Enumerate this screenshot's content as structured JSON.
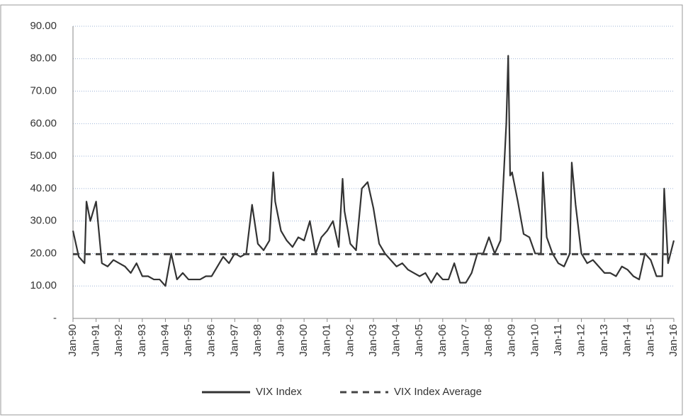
{
  "chart_data": {
    "type": "line",
    "xticks": [
      "Jan-90",
      "Jan-91",
      "Jan-92",
      "Jan-93",
      "Jan-94",
      "Jan-95",
      "Jan-96",
      "Jan-97",
      "Jan-98",
      "Jan-99",
      "Jan-00",
      "Jan-01",
      "Jan-02",
      "Jan-03",
      "Jan-04",
      "Jan-05",
      "Jan-06",
      "Jan-07",
      "Jan-08",
      "Jan-09",
      "Jan-10",
      "Jan-11",
      "Jan-12",
      "Jan-13",
      "Jan-14",
      "Jan-15",
      "Jan-16"
    ],
    "ylim": [
      0,
      90
    ],
    "yticks": [
      {
        "value": 0,
        "label": "-"
      },
      {
        "value": 10,
        "label": "10.00"
      },
      {
        "value": 20,
        "label": "20.00"
      },
      {
        "value": 30,
        "label": "30.00"
      },
      {
        "value": 40,
        "label": "40.00"
      },
      {
        "value": 50,
        "label": "50.00"
      },
      {
        "value": 60,
        "label": "60.00"
      },
      {
        "value": 70,
        "label": "70.00"
      },
      {
        "value": 80,
        "label": "80.00"
      },
      {
        "value": 90,
        "label": "90.00"
      }
    ],
    "grid": true,
    "series": [
      {
        "name": "VIX Index",
        "color": "#333333",
        "dash": false,
        "x": [
          "Jan-90",
          "Apr-90",
          "Jul-90",
          "Aug-90",
          "Oct-90",
          "Jan-91",
          "Apr-91",
          "Jul-91",
          "Oct-91",
          "Jan-92",
          "Apr-92",
          "Jul-92",
          "Oct-92",
          "Jan-93",
          "Apr-93",
          "Jul-93",
          "Oct-93",
          "Jan-94",
          "Apr-94",
          "Jul-94",
          "Oct-94",
          "Jan-95",
          "Apr-95",
          "Jul-95",
          "Oct-95",
          "Jan-96",
          "Apr-96",
          "Jul-96",
          "Oct-96",
          "Jan-97",
          "Apr-97",
          "Jul-97",
          "Oct-97",
          "Jan-98",
          "Apr-98",
          "Jul-98",
          "Sep-98",
          "Oct-98",
          "Jan-99",
          "Apr-99",
          "Jul-99",
          "Oct-99",
          "Jan-00",
          "Apr-00",
          "Jul-00",
          "Oct-00",
          "Jan-01",
          "Apr-01",
          "Jul-01",
          "Sep-01",
          "Oct-01",
          "Jan-02",
          "Apr-02",
          "Jul-02",
          "Oct-02",
          "Jan-03",
          "Apr-03",
          "Jul-03",
          "Oct-03",
          "Jan-04",
          "Apr-04",
          "Jul-04",
          "Oct-04",
          "Jan-05",
          "Apr-05",
          "Jul-05",
          "Oct-05",
          "Jan-06",
          "Apr-06",
          "Jul-06",
          "Oct-06",
          "Jan-07",
          "Apr-07",
          "Jul-07",
          "Oct-07",
          "Jan-08",
          "Apr-08",
          "Jul-08",
          "Oct-08",
          "Nov-08",
          "Dec-08",
          "Jan-09",
          "Apr-09",
          "Jul-09",
          "Oct-09",
          "Jan-10",
          "Apr-10",
          "May-10",
          "Jul-10",
          "Oct-10",
          "Jan-11",
          "Apr-11",
          "Jul-11",
          "Aug-11",
          "Oct-11",
          "Jan-12",
          "Apr-12",
          "Jul-12",
          "Oct-12",
          "Jan-13",
          "Apr-13",
          "Jul-13",
          "Oct-13",
          "Jan-14",
          "Apr-14",
          "Jul-14",
          "Oct-14",
          "Jan-15",
          "Apr-15",
          "Jul-15",
          "Aug-15",
          "Oct-15",
          "Jan-16"
        ],
        "values": [
          27,
          19,
          17,
          36,
          30,
          36,
          17,
          16,
          18,
          17,
          16,
          14,
          17,
          13,
          13,
          12,
          12,
          10,
          20,
          12,
          14,
          12,
          12,
          12,
          13,
          13,
          16,
          19,
          17,
          20,
          19,
          20,
          35,
          23,
          21,
          24,
          45,
          36,
          27,
          24,
          22,
          25,
          24,
          30,
          20,
          25,
          27,
          30,
          22,
          43,
          33,
          23,
          21,
          40,
          42,
          34,
          23,
          20,
          18,
          16,
          17,
          15,
          14,
          13,
          14,
          11,
          14,
          12,
          12,
          17,
          11,
          11,
          14,
          20,
          20,
          25,
          20,
          24,
          60,
          80.9,
          44,
          45,
          36,
          26,
          25,
          20,
          20,
          45,
          25,
          20,
          17,
          16,
          20,
          48,
          35,
          20,
          17,
          18,
          16,
          14,
          14,
          13,
          16,
          15,
          13,
          12,
          20,
          18,
          13,
          13,
          40,
          17,
          24
        ]
      },
      {
        "name": "VIX Index Average",
        "color": "#444444",
        "dash": true,
        "x": [
          "Jan-90",
          "Jan-16"
        ],
        "values": [
          19.8,
          19.8
        ]
      }
    ]
  }
}
